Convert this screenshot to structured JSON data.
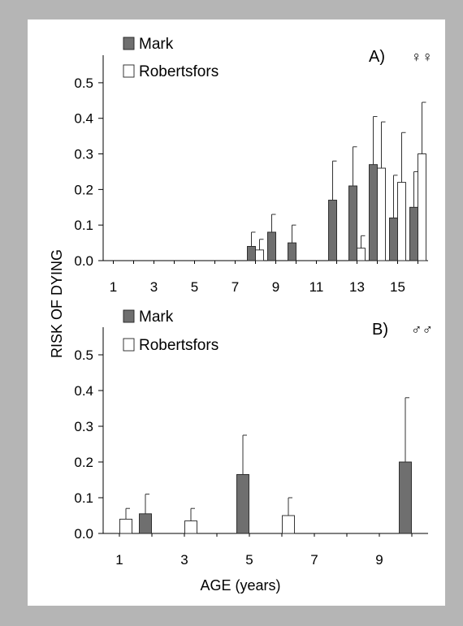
{
  "ylabel": "RISK OF DYING",
  "xlabel": "AGE (years)",
  "colors": {
    "mark": "#6f6f6f",
    "robertsfors": "#ffffff",
    "frame": "#b5b5b5",
    "panel": "#ffffff"
  },
  "chart_data": [
    {
      "type": "bar",
      "panel_label": "A)",
      "sex_symbol": "♀♀",
      "legend": [
        "Mark",
        "Robertsfors"
      ],
      "legend_placement": "top-left",
      "ylim": [
        0,
        0.55
      ],
      "yticks": [
        "0.0",
        "0.1",
        "0.2",
        "0.3",
        "0.4",
        "0.5"
      ],
      "yticks_values": [
        0,
        0.1,
        0.2,
        0.3,
        0.4,
        0.5
      ],
      "xlim": [
        0.5,
        16.5
      ],
      "xticks": [
        "1",
        "3",
        "5",
        "7",
        "9",
        "11",
        "13",
        "15"
      ],
      "xticks_values": [
        1,
        3,
        5,
        7,
        9,
        11,
        13,
        15
      ],
      "series": [
        {
          "name": "Mark",
          "points": [
            {
              "age": 8,
              "value": 0.04,
              "error": 0.04
            },
            {
              "age": 9,
              "value": 0.08,
              "error": 0.05
            },
            {
              "age": 10,
              "value": 0.05,
              "error": 0.05
            },
            {
              "age": 12,
              "value": 0.17,
              "error": 0.11
            },
            {
              "age": 13,
              "value": 0.21,
              "error": 0.11
            },
            {
              "age": 14,
              "value": 0.27,
              "error": 0.135
            },
            {
              "age": 15,
              "value": 0.12,
              "error": 0.12
            },
            {
              "age": 16,
              "value": 0.15,
              "error": 0.1
            }
          ]
        },
        {
          "name": "Robertsfors",
          "points": [
            {
              "age": 8,
              "value": 0.03,
              "error": 0.03
            },
            {
              "age": 13,
              "value": 0.035,
              "error": 0.035
            },
            {
              "age": 14,
              "value": 0.26,
              "error": 0.13
            },
            {
              "age": 15,
              "value": 0.22,
              "error": 0.14
            },
            {
              "age": 16,
              "value": 0.3,
              "error": 0.145
            }
          ]
        }
      ]
    },
    {
      "type": "bar",
      "panel_label": "B)",
      "sex_symbol": "♂♂",
      "legend": [
        "Mark",
        "Robertsfors"
      ],
      "legend_placement": "top-left",
      "ylim": [
        0,
        0.55
      ],
      "yticks": [
        "0.0",
        "0.1",
        "0.2",
        "0.3",
        "0.4",
        "0.5"
      ],
      "yticks_values": [
        0,
        0.1,
        0.2,
        0.3,
        0.4,
        0.5
      ],
      "xlim": [
        0.5,
        10.5
      ],
      "xticks": [
        "1",
        "3",
        "5",
        "7",
        "9"
      ],
      "xticks_values": [
        1,
        3,
        5,
        7,
        9
      ],
      "series": [
        {
          "name": "Mark",
          "points": [
            {
              "age": 2,
              "value": 0.055,
              "error": 0.055
            },
            {
              "age": 5,
              "value": 0.165,
              "error": 0.11
            },
            {
              "age": 10,
              "value": 0.2,
              "error": 0.18
            }
          ]
        },
        {
          "name": "Robertsfors",
          "points": [
            {
              "age": 1,
              "value": 0.04,
              "error": 0.03
            },
            {
              "age": 3,
              "value": 0.035,
              "error": 0.035
            },
            {
              "age": 6,
              "value": 0.05,
              "error": 0.05
            }
          ]
        }
      ]
    }
  ]
}
